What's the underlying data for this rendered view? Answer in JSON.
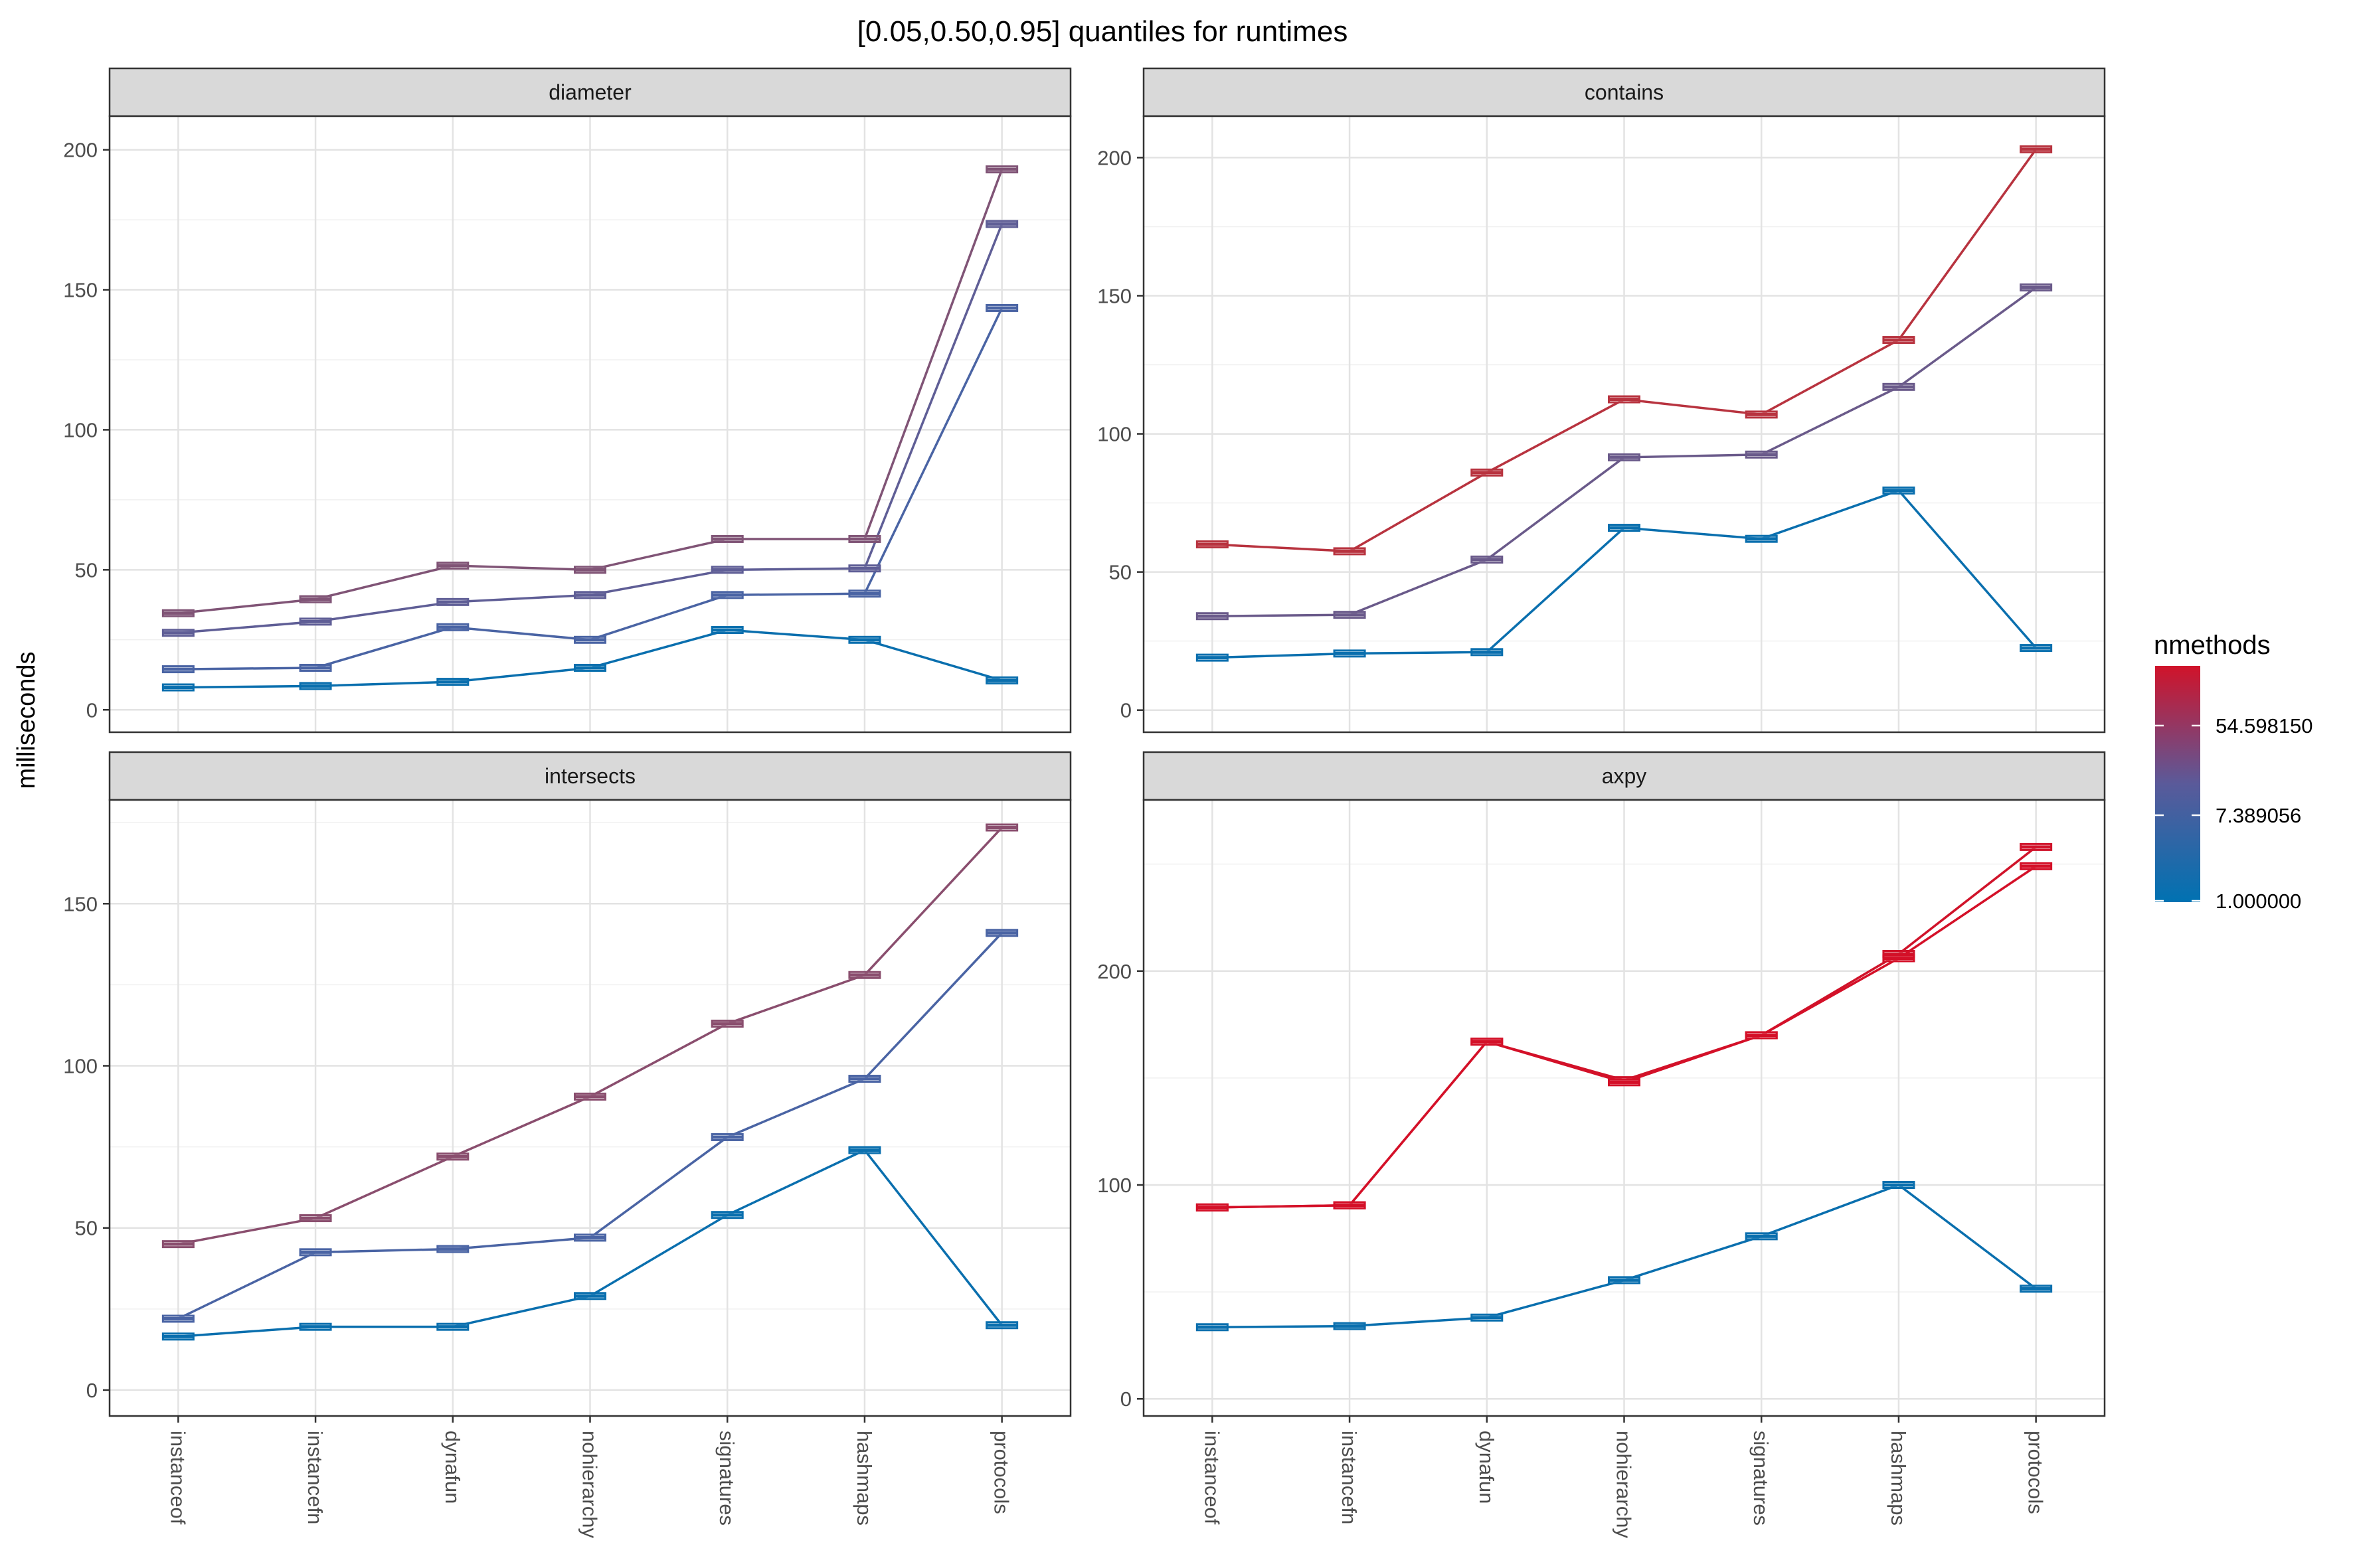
{
  "title": "[0.05,0.50,0.95] quantiles for runtimes",
  "ylabel": "milliseconds",
  "legend": {
    "title": "nmethods",
    "labels": [
      "54.598150",
      "7.389056",
      "1.000000"
    ],
    "scale": "log",
    "placement": "right",
    "color_low": "#0072B2",
    "color_mid": "#5A5A9A",
    "color_high": "#D0132A"
  },
  "chart_data": [
    {
      "type": "line",
      "facet": "diameter",
      "categories": [
        "instanceof",
        "instancefn",
        "dynafun",
        "nohierarchy",
        "signatures",
        "hashmaps",
        "protocols"
      ],
      "ylim": [
        -8,
        212
      ],
      "yticks": [
        0,
        50,
        100,
        150,
        200
      ],
      "grid": true,
      "series": [
        {
          "nmethods": 1,
          "color": "#0A6FAE",
          "values": [
            8,
            8.5,
            10,
            15,
            28.5,
            25,
            10.5
          ]
        },
        {
          "nmethods": 2,
          "color": "#4A64A4",
          "values": [
            14.5,
            15,
            29.5,
            25,
            41,
            41.5,
            143.5
          ]
        },
        {
          "nmethods": 4,
          "color": "#5F5E96",
          "values": [
            27.5,
            31.5,
            38.5,
            41,
            50,
            50.5,
            173.5
          ]
        },
        {
          "nmethods": 7,
          "color": "#805476",
          "values": [
            34.5,
            39.5,
            51.5,
            50,
            61,
            61,
            193
          ]
        }
      ]
    },
    {
      "type": "line",
      "facet": "contains",
      "categories": [
        "instanceof",
        "instancefn",
        "dynafun",
        "nohierarchy",
        "signatures",
        "hashmaps",
        "protocols"
      ],
      "ylim": [
        -8,
        215
      ],
      "yticks": [
        0,
        50,
        100,
        150,
        200
      ],
      "grid": true,
      "series": [
        {
          "nmethods": 1,
          "color": "#0A6FAE",
          "values": [
            19,
            20.5,
            21,
            66,
            62,
            79.5,
            22.5
          ]
        },
        {
          "nmethods": 5,
          "color": "#6A5A8A",
          "values": [
            34,
            34.5,
            54.5,
            91.5,
            92.5,
            117,
            153
          ]
        },
        {
          "nmethods": 30,
          "color": "#B8333F",
          "values": [
            60,
            57.5,
            86,
            112.5,
            107,
            134,
            203
          ]
        }
      ]
    },
    {
      "type": "line",
      "facet": "intersects",
      "categories": [
        "instanceof",
        "instancefn",
        "dynafun",
        "nohierarchy",
        "signatures",
        "hashmaps",
        "protocols"
      ],
      "ylim": [
        -8,
        182
      ],
      "yticks": [
        0,
        50,
        100,
        150
      ],
      "grid": true,
      "series": [
        {
          "nmethods": 1,
          "color": "#0A6FAE",
          "values": [
            16.5,
            19.5,
            19.5,
            29,
            54,
            74,
            20
          ]
        },
        {
          "nmethods": 2,
          "color": "#4A64A4",
          "values": [
            22,
            42.5,
            43.5,
            47,
            78,
            96,
            141
          ]
        },
        {
          "nmethods": 7,
          "color": "#8A4E6E",
          "values": [
            45,
            53,
            72,
            90.5,
            113,
            128,
            173.5
          ]
        }
      ]
    },
    {
      "type": "line",
      "facet": "axpy",
      "categories": [
        "instanceof",
        "instancefn",
        "dynafun",
        "nohierarchy",
        "signatures",
        "hashmaps",
        "protocols"
      ],
      "ylim": [
        -8,
        280
      ],
      "yticks": [
        0,
        100,
        200
      ],
      "grid": true,
      "series": [
        {
          "nmethods": 1,
          "color": "#0A6FAE",
          "values": [
            33.5,
            34,
            38,
            55.5,
            76,
            100,
            51.5
          ]
        },
        {
          "nmethods": 150,
          "color": "#D0132A",
          "values": [
            89.5,
            90.5,
            167,
            149,
            170,
            208,
            258
          ]
        },
        {
          "nmethods": 160,
          "color": "#D41028",
          "values": [
            89.5,
            90.5,
            167,
            148,
            170,
            206,
            249
          ]
        }
      ]
    }
  ]
}
